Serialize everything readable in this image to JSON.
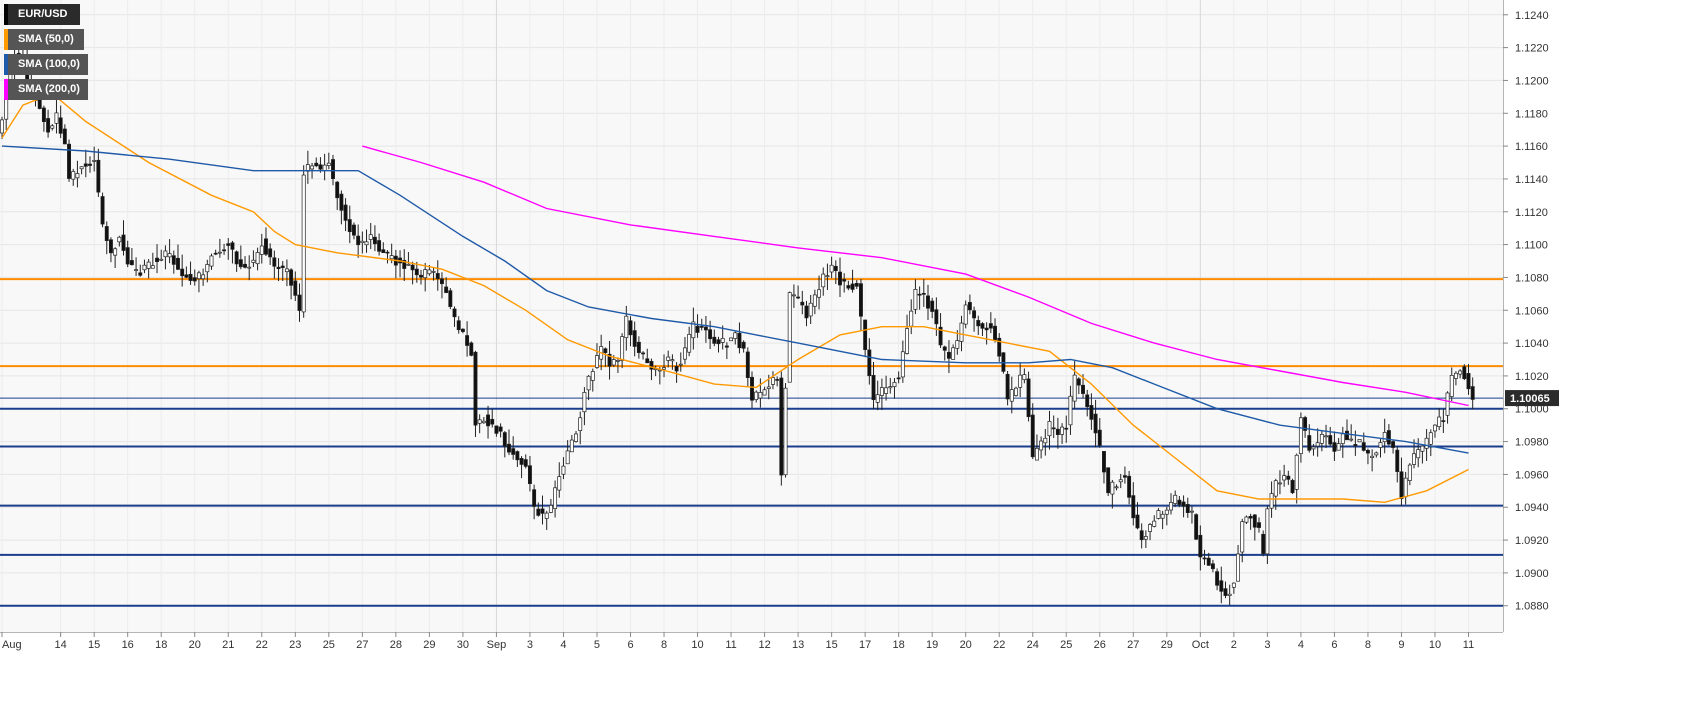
{
  "chart_data": {
    "type": "candlestick",
    "symbol": "EUR/USD",
    "last_price": "1.10065",
    "y_axis": {
      "min": 1.0864,
      "max": 1.1249,
      "tick_labels": [
        "1.0880",
        "1.0900",
        "1.0920",
        "1.0940",
        "1.0960",
        "1.0980",
        "1.1000",
        "1.1020",
        "1.1040",
        "1.1060",
        "1.1080",
        "1.1100",
        "1.1120",
        "1.1140",
        "1.1160",
        "1.1180",
        "1.1200",
        "1.1220",
        "1.1240"
      ],
      "ticks": [
        1.088,
        1.09,
        1.092,
        1.094,
        1.096,
        1.098,
        1.1,
        1.102,
        1.104,
        1.106,
        1.108,
        1.11,
        1.112,
        1.114,
        1.116,
        1.118,
        1.12,
        1.122,
        1.124
      ]
    },
    "x_axis": {
      "tick_labels": [
        "Aug",
        "14",
        "15",
        "16",
        "18",
        "20",
        "21",
        "22",
        "23",
        "25",
        "27",
        "28",
        "29",
        "30",
        "Sep",
        "3",
        "4",
        "5",
        "6",
        "8",
        "10",
        "11",
        "12",
        "13",
        "15",
        "17",
        "18",
        "19",
        "20",
        "22",
        "24",
        "25",
        "26",
        "27",
        "29",
        "Oct",
        "2",
        "3",
        "4",
        "6",
        "8",
        "9",
        "10",
        "11"
      ],
      "tick_bar_index": [
        0,
        14,
        22,
        30,
        38,
        46,
        54,
        62,
        70,
        78,
        86,
        94,
        102,
        110,
        118,
        126,
        134,
        142,
        150,
        158,
        166,
        174,
        182,
        190,
        198,
        206,
        214,
        222,
        230,
        238,
        246,
        254,
        262,
        270,
        278,
        286,
        294,
        302,
        310,
        318,
        326,
        334,
        342,
        350
      ]
    },
    "grid": true,
    "legend_placement": "top-left",
    "legend": [
      {
        "label": "EUR/USD",
        "color": "#000000"
      },
      {
        "label": "SMA (50,0)",
        "color": "#ff9900"
      },
      {
        "label": "SMA (100,0)",
        "color": "#1f5aa8"
      },
      {
        "label": "SMA (200,0)",
        "color": "#ff00ff"
      }
    ],
    "horizontal_levels": [
      {
        "value": 1.1079,
        "color": "#ff8c00"
      },
      {
        "value": 1.1026,
        "color": "#ff8c00"
      },
      {
        "value": 1.1,
        "color": "#1a3e8c"
      },
      {
        "value": 1.0977,
        "color": "#1a3e8c"
      },
      {
        "value": 1.0941,
        "color": "#1a3e8c"
      },
      {
        "value": 1.0911,
        "color": "#1a3e8c"
      },
      {
        "value": 1.088,
        "color": "#1a3e8c"
      }
    ],
    "price_line": {
      "value": 1.10065,
      "color": "#1a3e8c"
    },
    "close_anchors": [
      [
        0,
        1.1175
      ],
      [
        1,
        1.1195
      ],
      [
        3,
        1.1215
      ],
      [
        5,
        1.121
      ],
      [
        7,
        1.119
      ],
      [
        9,
        1.1185
      ],
      [
        11,
        1.117
      ],
      [
        13,
        1.1178
      ],
      [
        15,
        1.116
      ],
      [
        16,
        1.114
      ],
      [
        18,
        1.1145
      ],
      [
        20,
        1.115
      ],
      [
        22,
        1.115
      ],
      [
        24,
        1.111
      ],
      [
        26,
        1.1095
      ],
      [
        28,
        1.1105
      ],
      [
        30,
        1.109
      ],
      [
        32,
        1.1082
      ],
      [
        34,
        1.1085
      ],
      [
        36,
        1.109
      ],
      [
        38,
        1.1092
      ],
      [
        40,
        1.1095
      ],
      [
        42,
        1.1085
      ],
      [
        44,
        1.108
      ],
      [
        46,
        1.1078
      ],
      [
        48,
        1.1082
      ],
      [
        50,
        1.1095
      ],
      [
        52,
        1.1098
      ],
      [
        54,
        1.11
      ],
      [
        56,
        1.109
      ],
      [
        58,
        1.1085
      ],
      [
        60,
        1.109
      ],
      [
        62,
        1.1102
      ],
      [
        64,
        1.109
      ],
      [
        66,
        1.1085
      ],
      [
        68,
        1.1083
      ],
      [
        70,
        1.107
      ],
      [
        71,
        1.106
      ],
      [
        72,
        1.1145
      ],
      [
        74,
        1.115
      ],
      [
        76,
        1.1145
      ],
      [
        78,
        1.115
      ],
      [
        80,
        1.113
      ],
      [
        82,
        1.1115
      ],
      [
        84,
        1.1105
      ],
      [
        86,
        1.11
      ],
      [
        88,
        1.1105
      ],
      [
        90,
        1.1098
      ],
      [
        92,
        1.1092
      ],
      [
        94,
        1.109
      ],
      [
        96,
        1.1088
      ],
      [
        98,
        1.1085
      ],
      [
        100,
        1.108
      ],
      [
        102,
        1.1085
      ],
      [
        104,
        1.108
      ],
      [
        106,
        1.107
      ],
      [
        108,
        1.1055
      ],
      [
        110,
        1.1045
      ],
      [
        112,
        1.1035
      ],
      [
        113,
        1.099
      ],
      [
        115,
        1.0995
      ],
      [
        117,
        1.099
      ],
      [
        119,
        1.0985
      ],
      [
        121,
        1.0975
      ],
      [
        123,
        1.097
      ],
      [
        125,
        1.0965
      ],
      [
        127,
        1.094
      ],
      [
        129,
        1.0935
      ],
      [
        131,
        1.094
      ],
      [
        133,
        1.096
      ],
      [
        135,
        1.0975
      ],
      [
        137,
        1.0985
      ],
      [
        139,
        1.101
      ],
      [
        141,
        1.1025
      ],
      [
        143,
        1.1035
      ],
      [
        145,
        1.1028
      ],
      [
        147,
        1.103
      ],
      [
        149,
        1.1055
      ],
      [
        151,
        1.104
      ],
      [
        153,
        1.1032
      ],
      [
        155,
        1.1025
      ],
      [
        157,
        1.1025
      ],
      [
        159,
        1.103
      ],
      [
        161,
        1.1025
      ],
      [
        163,
        1.1035
      ],
      [
        165,
        1.105
      ],
      [
        167,
        1.1048
      ],
      [
        169,
        1.1045
      ],
      [
        171,
        1.104
      ],
      [
        173,
        1.104
      ],
      [
        175,
        1.1045
      ],
      [
        177,
        1.1035
      ],
      [
        179,
        1.1005
      ],
      [
        181,
        1.101
      ],
      [
        183,
        1.1015
      ],
      [
        185,
        1.1018
      ],
      [
        186,
        1.096
      ],
      [
        188,
        1.107
      ],
      [
        190,
        1.1065
      ],
      [
        192,
        1.1058
      ],
      [
        194,
        1.1068
      ],
      [
        196,
        1.108
      ],
      [
        198,
        1.1085
      ],
      [
        200,
        1.1078
      ],
      [
        202,
        1.1075
      ],
      [
        204,
        1.1075
      ],
      [
        206,
        1.1035
      ],
      [
        208,
        1.1005
      ],
      [
        210,
        1.101
      ],
      [
        212,
        1.1015
      ],
      [
        214,
        1.102
      ],
      [
        216,
        1.105
      ],
      [
        218,
        1.107
      ],
      [
        220,
        1.1068
      ],
      [
        222,
        1.106
      ],
      [
        224,
        1.1038
      ],
      [
        226,
        1.103
      ],
      [
        228,
        1.104
      ],
      [
        230,
        1.1065
      ],
      [
        232,
        1.1055
      ],
      [
        234,
        1.105
      ],
      [
        236,
        1.105
      ],
      [
        238,
        1.1035
      ],
      [
        240,
        1.1005
      ],
      [
        242,
        1.1015
      ],
      [
        244,
        1.102
      ],
      [
        246,
        1.097
      ],
      [
        248,
        1.098
      ],
      [
        250,
        1.099
      ],
      [
        252,
        1.0985
      ],
      [
        254,
        1.099
      ],
      [
        256,
        1.102
      ],
      [
        258,
        1.101
      ],
      [
        260,
        1.0995
      ],
      [
        262,
        1.0975
      ],
      [
        264,
        1.095
      ],
      [
        266,
        1.0955
      ],
      [
        268,
        1.096
      ],
      [
        270,
        1.0935
      ],
      [
        272,
        1.092
      ],
      [
        274,
        1.093
      ],
      [
        276,
        1.0935
      ],
      [
        278,
        1.094
      ],
      [
        280,
        1.0945
      ],
      [
        282,
        1.094
      ],
      [
        284,
        1.0935
      ],
      [
        286,
        1.091
      ],
      [
        288,
        1.0905
      ],
      [
        290,
        1.0895
      ],
      [
        292,
        1.0885
      ],
      [
        294,
        1.0895
      ],
      [
        296,
        1.093
      ],
      [
        298,
        1.0935
      ],
      [
        300,
        1.0925
      ],
      [
        301,
        1.091
      ],
      [
        302,
        1.094
      ],
      [
        304,
        1.0955
      ],
      [
        306,
        1.096
      ],
      [
        308,
        1.095
      ],
      [
        310,
        1.0995
      ],
      [
        312,
        1.0975
      ],
      [
        314,
        1.098
      ],
      [
        316,
        1.0985
      ],
      [
        318,
        1.0975
      ],
      [
        320,
        1.0985
      ],
      [
        322,
        1.098
      ],
      [
        324,
        1.098
      ],
      [
        326,
        1.097
      ],
      [
        328,
        1.0975
      ],
      [
        330,
        1.0985
      ],
      [
        332,
        1.0975
      ],
      [
        334,
        1.0945
      ],
      [
        336,
        1.0965
      ],
      [
        338,
        1.0975
      ],
      [
        340,
        1.098
      ],
      [
        342,
        1.099
      ],
      [
        344,
        1.0995
      ],
      [
        346,
        1.102
      ],
      [
        348,
        1.1025
      ],
      [
        350,
        1.1015
      ],
      [
        351,
        1.10065
      ]
    ],
    "series": [
      {
        "name": "SMA (50,0)",
        "color": "#ff9900",
        "points": [
          [
            0,
            1.1165
          ],
          [
            5,
            1.1185
          ],
          [
            12,
            1.1192
          ],
          [
            20,
            1.1175
          ],
          [
            35,
            1.115
          ],
          [
            50,
            1.113
          ],
          [
            60,
            1.112
          ],
          [
            65,
            1.1108
          ],
          [
            70,
            1.11
          ],
          [
            80,
            1.1095
          ],
          [
            95,
            1.109
          ],
          [
            105,
            1.1085
          ],
          [
            115,
            1.1075
          ],
          [
            125,
            1.106
          ],
          [
            135,
            1.1042
          ],
          [
            145,
            1.1032
          ],
          [
            160,
            1.1022
          ],
          [
            170,
            1.1015
          ],
          [
            180,
            1.1013
          ],
          [
            190,
            1.103
          ],
          [
            200,
            1.1045
          ],
          [
            210,
            1.105
          ],
          [
            220,
            1.105
          ],
          [
            230,
            1.1045
          ],
          [
            240,
            1.104
          ],
          [
            250,
            1.1035
          ],
          [
            260,
            1.1015
          ],
          [
            270,
            1.099
          ],
          [
            280,
            1.097
          ],
          [
            290,
            1.095
          ],
          [
            300,
            1.0945
          ],
          [
            310,
            1.0945
          ],
          [
            320,
            1.0945
          ],
          [
            330,
            1.0943
          ],
          [
            340,
            1.095
          ],
          [
            350,
            1.0963
          ]
        ]
      },
      {
        "name": "SMA (100,0)",
        "color": "#1f5aa8",
        "points": [
          [
            0,
            1.116
          ],
          [
            20,
            1.1157
          ],
          [
            40,
            1.1152
          ],
          [
            60,
            1.1145
          ],
          [
            70,
            1.1145
          ],
          [
            85,
            1.1145
          ],
          [
            95,
            1.113
          ],
          [
            110,
            1.1105
          ],
          [
            120,
            1.109
          ],
          [
            130,
            1.1072
          ],
          [
            140,
            1.1062
          ],
          [
            155,
            1.1055
          ],
          [
            170,
            1.105
          ],
          [
            180,
            1.1045
          ],
          [
            190,
            1.104
          ],
          [
            200,
            1.1035
          ],
          [
            210,
            1.103
          ],
          [
            230,
            1.1028
          ],
          [
            245,
            1.1028
          ],
          [
            255,
            1.103
          ],
          [
            265,
            1.1025
          ],
          [
            275,
            1.1015
          ],
          [
            290,
            1.1
          ],
          [
            305,
            1.099
          ],
          [
            320,
            1.0985
          ],
          [
            335,
            1.098
          ],
          [
            350,
            1.0973
          ]
        ]
      },
      {
        "name": "SMA (200,0)",
        "color": "#ff00ff",
        "points": [
          [
            86,
            1.116
          ],
          [
            100,
            1.115
          ],
          [
            115,
            1.1138
          ],
          [
            130,
            1.1122
          ],
          [
            150,
            1.1112
          ],
          [
            170,
            1.1105
          ],
          [
            190,
            1.1098
          ],
          [
            210,
            1.1092
          ],
          [
            230,
            1.1082
          ],
          [
            245,
            1.1068
          ],
          [
            260,
            1.1052
          ],
          [
            275,
            1.104
          ],
          [
            290,
            1.103
          ],
          [
            305,
            1.1023
          ],
          [
            320,
            1.1016
          ],
          [
            335,
            1.101
          ],
          [
            350,
            1.1002
          ]
        ]
      }
    ]
  }
}
